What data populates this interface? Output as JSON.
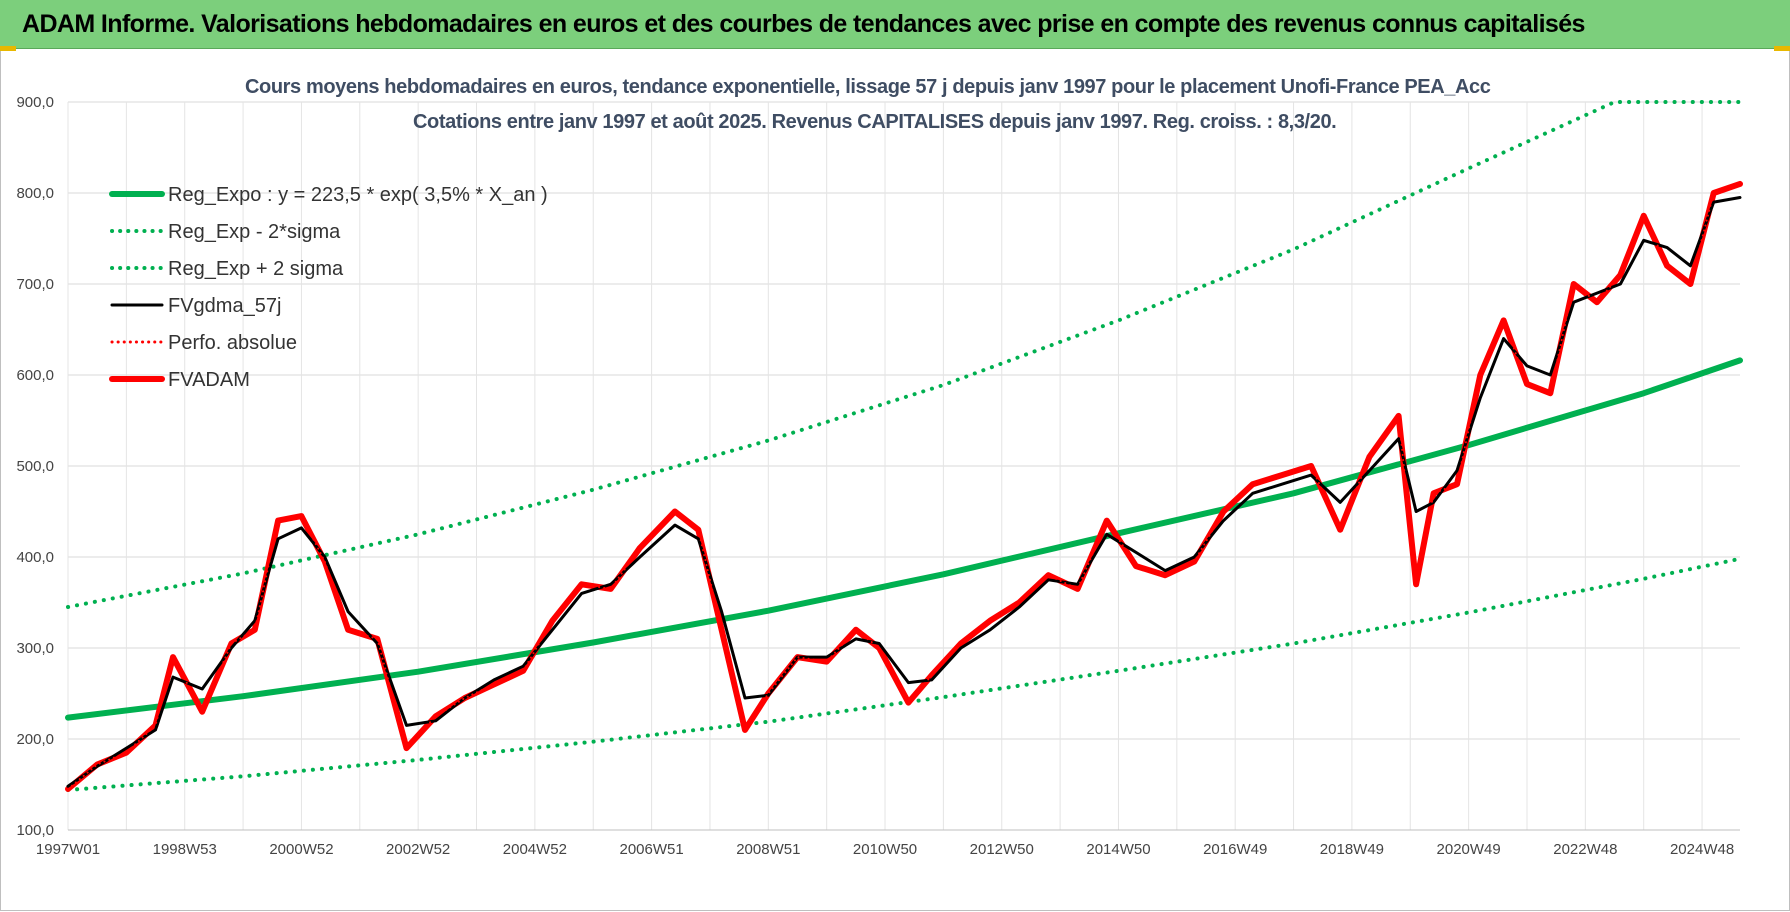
{
  "banner": {
    "title": "ADAM Informe. Valorisations hebdomadaires en euros et des courbes de tendances avec prise en compte des revenus connus capitalisés"
  },
  "chart_data": {
    "type": "line",
    "title": "Cours moyens hebdomadaires en euros, tendance exponentielle, lissage 57 j depuis janv 1997  pour le placement Unofi-France PEA_Acc",
    "subtitle": "Cotations entre janv 1997 et août 2025.  Revenus CAPITALISES depuis janv 1997. Reg.  croiss. : 8,3/20.",
    "xlabel": "",
    "ylabel": "",
    "ylim": [
      100,
      900
    ],
    "xlim": [
      1997.0,
      2025.65
    ],
    "grid": true,
    "legend_placement": "top-left",
    "y_ticks": [
      "900,0",
      "800,0",
      "700,0",
      "600,0",
      "500,0",
      "400,0",
      "300,0",
      "200,0",
      "100,0"
    ],
    "y_tick_values": [
      900,
      800,
      700,
      600,
      500,
      400,
      300,
      200,
      100
    ],
    "x_ticks": [
      "1997W01",
      "1998W53",
      "2000W52",
      "2002W52",
      "2004W52",
      "2006W51",
      "2008W51",
      "2010W50",
      "2012W50",
      "2014W50",
      "2016W49",
      "2018W49",
      "2020W49",
      "2022W48",
      "2024W48"
    ],
    "x_tick_values": [
      1997.0,
      1999.0,
      2001.0,
      2003.0,
      2005.0,
      2007.0,
      2009.0,
      2011.0,
      2013.0,
      2015.0,
      2017.0,
      2019.0,
      2021.0,
      2023.0,
      2025.0
    ],
    "series": [
      {
        "name": "Reg_Expo : y = 223,5 * exp( 3,5% *  X_an )",
        "style": "solid-thick",
        "color": "#00b050",
        "x": [
          1997.0,
          2000.0,
          2003.0,
          2006.0,
          2009.0,
          2012.0,
          2015.0,
          2018.0,
          2021.0,
          2024.0,
          2025.65
        ],
        "y": [
          223.5,
          247.0,
          274.0,
          306.0,
          341.0,
          381.0,
          426.0,
          470.0,
          523.0,
          580.0,
          616.0
        ]
      },
      {
        "name": "Reg_Exp - 2*sigma",
        "style": "dotted",
        "color": "#00b050",
        "x": [
          1997.0,
          2000.0,
          2003.0,
          2006.0,
          2009.0,
          2012.0,
          2015.0,
          2018.0,
          2021.0,
          2024.0,
          2025.65
        ],
        "y": [
          144.0,
          159.0,
          177.0,
          197.0,
          219.0,
          246.0,
          275.0,
          305.0,
          339.0,
          376.0,
          398.0
        ]
      },
      {
        "name": "Reg_Exp + 2 sigma",
        "style": "dotted",
        "color": "#00b050",
        "x": [
          1997.0,
          2000.0,
          2003.0,
          2006.0,
          2009.0,
          2012.0,
          2015.0,
          2018.0,
          2021.0,
          2023.5,
          2025.65
        ],
        "y": [
          345.0,
          382.0,
          425.0,
          474.0,
          528.0,
          589.0,
          660.0,
          738.0,
          827.0,
          900.0,
          900.0
        ]
      },
      {
        "name": "FVgdma_57j",
        "style": "solid",
        "color": "#000000",
        "x": [
          1997.0,
          1997.5,
          1998.0,
          1998.5,
          1998.8,
          1999.3,
          1999.8,
          2000.2,
          2000.6,
          2001.0,
          2001.4,
          2001.8,
          2002.3,
          2002.8,
          2003.3,
          2003.8,
          2004.3,
          2004.8,
          2005.3,
          2005.8,
          2006.3,
          2006.8,
          2007.4,
          2007.8,
          2008.2,
          2008.6,
          2009.0,
          2009.5,
          2010.0,
          2010.5,
          2010.9,
          2011.4,
          2011.8,
          2012.3,
          2012.8,
          2013.3,
          2013.8,
          2014.3,
          2014.8,
          2015.3,
          2015.8,
          2016.3,
          2016.8,
          2017.3,
          2017.8,
          2018.3,
          2018.8,
          2019.3,
          2019.8,
          2020.1,
          2020.4,
          2020.8,
          2021.2,
          2021.6,
          2022.0,
          2022.4,
          2022.8,
          2023.2,
          2023.6,
          2024.0,
          2024.4,
          2024.8,
          2025.2,
          2025.65
        ],
        "y": [
          148,
          170,
          190,
          210,
          268,
          255,
          300,
          330,
          420,
          432,
          400,
          340,
          305,
          215,
          220,
          245,
          265,
          280,
          320,
          360,
          370,
          400,
          435,
          420,
          340,
          245,
          248,
          290,
          290,
          310,
          305,
          262,
          265,
          300,
          320,
          345,
          375,
          370,
          425,
          405,
          385,
          400,
          440,
          470,
          480,
          490,
          460,
          495,
          530,
          450,
          460,
          495,
          575,
          640,
          610,
          600,
          680,
          690,
          700,
          748,
          740,
          720,
          790,
          795
        ]
      },
      {
        "name": "Perfo. absolue",
        "style": "dotted",
        "color": "#ff0000",
        "x": [
          1997.0,
          1997.5,
          1998.0,
          1998.5,
          1998.8,
          1999.3,
          1999.8,
          2000.2,
          2000.6,
          2001.0,
          2001.4,
          2001.8,
          2002.3,
          2002.8,
          2003.3,
          2003.8,
          2004.3,
          2004.8,
          2005.3,
          2005.8,
          2006.3,
          2006.8,
          2007.4,
          2007.8,
          2008.2,
          2008.6,
          2009.0,
          2009.5,
          2010.0,
          2010.5,
          2010.9,
          2011.4,
          2011.8,
          2012.3,
          2012.8,
          2013.3,
          2013.8,
          2014.3,
          2014.8,
          2015.3,
          2015.8,
          2016.3,
          2016.8,
          2017.3,
          2017.8,
          2018.3,
          2018.8,
          2019.3,
          2019.8,
          2020.1,
          2020.4,
          2020.8,
          2021.2,
          2021.6,
          2022.0,
          2022.4,
          2022.8,
          2023.2,
          2023.6,
          2024.0,
          2024.4,
          2024.8,
          2025.2,
          2025.65
        ],
        "y": [
          145,
          172,
          185,
          215,
          290,
          230,
          305,
          320,
          440,
          445,
          395,
          320,
          310,
          190,
          225,
          245,
          260,
          275,
          330,
          370,
          365,
          410,
          450,
          430,
          320,
          210,
          250,
          290,
          285,
          320,
          300,
          240,
          270,
          305,
          330,
          350,
          380,
          365,
          440,
          390,
          380,
          395,
          450,
          480,
          490,
          500,
          430,
          510,
          555,
          370,
          470,
          480,
          600,
          660,
          590,
          580,
          700,
          680,
          710,
          775,
          720,
          700,
          800,
          810
        ]
      },
      {
        "name": "FVADAM",
        "style": "solid-thick",
        "color": "#ff0000",
        "x": [
          1997.0,
          1997.5,
          1998.0,
          1998.5,
          1998.8,
          1999.3,
          1999.8,
          2000.2,
          2000.6,
          2001.0,
          2001.4,
          2001.8,
          2002.3,
          2002.8,
          2003.3,
          2003.8,
          2004.3,
          2004.8,
          2005.3,
          2005.8,
          2006.3,
          2006.8,
          2007.4,
          2007.8,
          2008.2,
          2008.6,
          2009.0,
          2009.5,
          2010.0,
          2010.5,
          2010.9,
          2011.4,
          2011.8,
          2012.3,
          2012.8,
          2013.3,
          2013.8,
          2014.3,
          2014.8,
          2015.3,
          2015.8,
          2016.3,
          2016.8,
          2017.3,
          2017.8,
          2018.3,
          2018.8,
          2019.3,
          2019.8,
          2020.1,
          2020.4,
          2020.8,
          2021.2,
          2021.6,
          2022.0,
          2022.4,
          2022.8,
          2023.2,
          2023.6,
          2024.0,
          2024.4,
          2024.8,
          2025.2,
          2025.65
        ],
        "y": [
          145,
          172,
          185,
          215,
          290,
          230,
          305,
          320,
          440,
          445,
          395,
          320,
          310,
          190,
          225,
          245,
          260,
          275,
          330,
          370,
          365,
          410,
          450,
          430,
          320,
          210,
          250,
          290,
          285,
          320,
          300,
          240,
          270,
          305,
          330,
          350,
          380,
          365,
          440,
          390,
          380,
          395,
          450,
          480,
          490,
          500,
          430,
          510,
          555,
          370,
          470,
          480,
          600,
          660,
          590,
          580,
          700,
          680,
          710,
          775,
          720,
          700,
          800,
          810
        ]
      }
    ]
  },
  "colors": {
    "banner": "#7ccf7c",
    "accent": "#e8b800",
    "grid": "#d9d9d9",
    "title_text": "#3f4d63"
  }
}
